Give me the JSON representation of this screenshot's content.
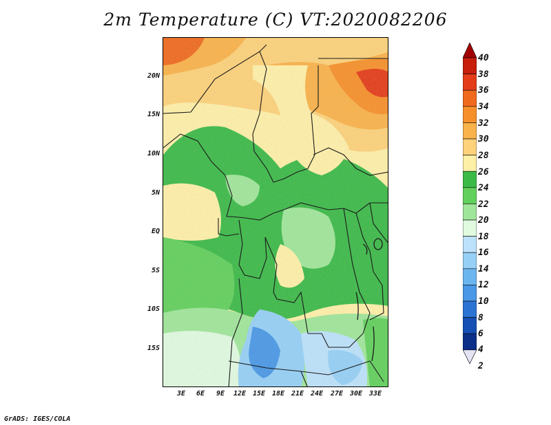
{
  "title": "2m Temperature (C) VT:2020082206",
  "footer": "GrADS: IGES/COLA",
  "lat_labels": [
    "20N",
    "15N",
    "10N",
    "5N",
    "EQ",
    "5S",
    "10S",
    "15S"
  ],
  "lon_labels": [
    "3E",
    "6E",
    "9E",
    "12E",
    "15E",
    "18E",
    "21E",
    "24E",
    "27E",
    "30E",
    "33E"
  ],
  "colorbar": {
    "labels": [
      "40",
      "38",
      "36",
      "34",
      "32",
      "30",
      "28",
      "26",
      "24",
      "22",
      "20",
      "18",
      "16",
      "14",
      "12",
      "10",
      "8",
      "6",
      "4",
      "2"
    ],
    "colors": [
      "#a00000",
      "#c81e0c",
      "#e43c18",
      "#f06a1e",
      "#f7902a",
      "#fab24a",
      "#fdd27a",
      "#fff0a8",
      "#3cba48",
      "#62d05c",
      "#a0e69a",
      "#e0fae0",
      "#bce2fb",
      "#96d0f6",
      "#6cb6f0",
      "#4a98e6",
      "#2c74d4",
      "#1650b4",
      "#0c3088",
      "#e4e4f4"
    ]
  },
  "colors": {
    "frame": "#000000",
    "border_lines": "#1a1a1a",
    "water": "#e0fae0"
  }
}
